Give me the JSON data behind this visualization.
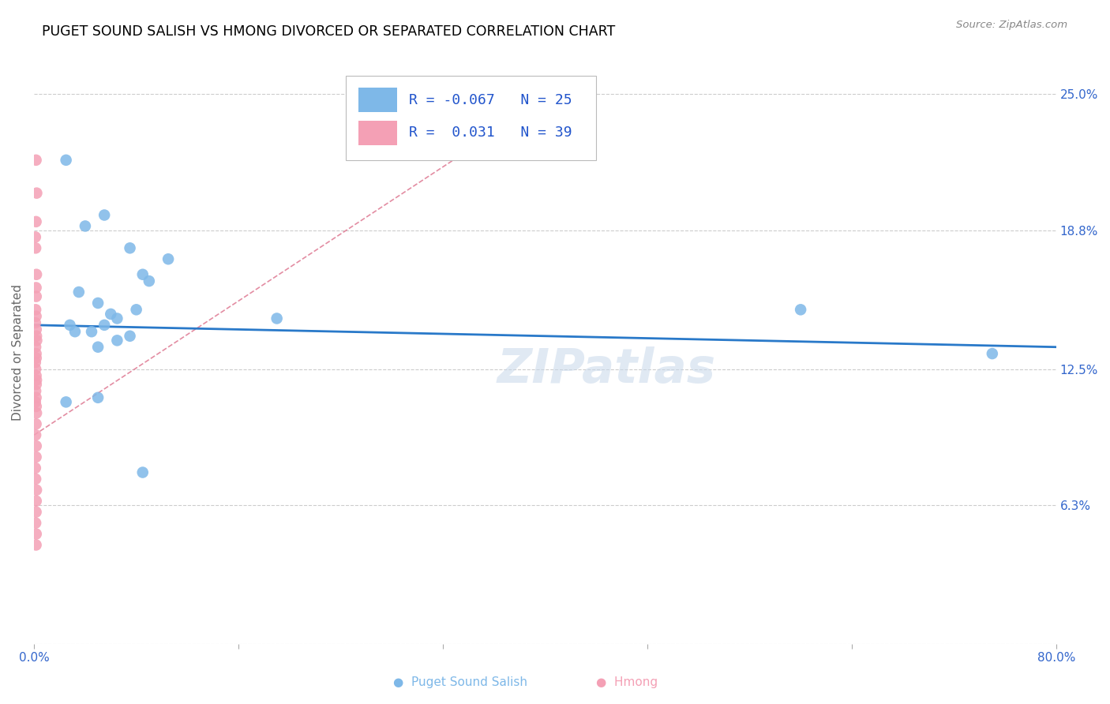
{
  "title": "PUGET SOUND SALISH VS HMONG DIVORCED OR SEPARATED CORRELATION CHART",
  "source": "Source: ZipAtlas.com",
  "ylabel": "Divorced or Separated",
  "xlim": [
    0.0,
    80.0
  ],
  "ylim": [
    0.0,
    26.5
  ],
  "yticks": [
    0.0,
    6.3,
    12.5,
    18.8,
    25.0
  ],
  "ytick_labels": [
    "",
    "6.3%",
    "12.5%",
    "18.8%",
    "25.0%"
  ],
  "xticks": [
    0.0,
    16.0,
    32.0,
    48.0,
    64.0,
    80.0
  ],
  "r_salish": -0.067,
  "n_salish": 25,
  "r_hmong": 0.031,
  "n_hmong": 39,
  "color_salish": "#7eb8e8",
  "color_hmong": "#f4a0b5",
  "color_salish_line": "#2979c9",
  "color_hmong_line": "#e08098",
  "watermark": "ZIPatlas",
  "salish_points_x": [
    2.5,
    5.5,
    4.0,
    7.5,
    10.5,
    9.0,
    3.5,
    5.0,
    6.0,
    2.8,
    4.5,
    6.5,
    8.0,
    8.5,
    5.5,
    3.2,
    5.0,
    6.5,
    7.5,
    19.0,
    60.0,
    75.0,
    2.5,
    5.0,
    8.5
  ],
  "salish_points_y": [
    22.0,
    19.5,
    19.0,
    18.0,
    17.5,
    16.5,
    16.0,
    15.5,
    15.0,
    14.5,
    14.2,
    14.8,
    15.2,
    16.8,
    14.5,
    14.2,
    13.5,
    13.8,
    14.0,
    14.8,
    15.2,
    13.2,
    11.0,
    11.2,
    7.8
  ],
  "hmong_points_x": [
    0.15,
    0.2,
    0.15,
    0.1,
    0.12,
    0.18,
    0.15,
    0.16,
    0.12,
    0.15,
    0.1,
    0.16,
    0.18,
    0.2,
    0.12,
    0.15,
    0.16,
    0.1,
    0.12,
    0.15,
    0.18,
    0.16,
    0.12,
    0.15,
    0.1,
    0.16,
    0.18,
    0.15,
    0.12,
    0.16,
    0.15,
    0.1,
    0.12,
    0.18,
    0.16,
    0.15,
    0.12,
    0.16,
    0.15
  ],
  "hmong_points_y": [
    22.0,
    20.5,
    19.2,
    18.5,
    18.0,
    16.8,
    16.2,
    15.8,
    15.2,
    14.9,
    14.6,
    14.3,
    14.0,
    13.8,
    13.5,
    13.2,
    13.0,
    12.8,
    12.5,
    12.2,
    12.0,
    11.8,
    11.5,
    11.2,
    11.0,
    10.8,
    10.5,
    10.0,
    9.5,
    9.0,
    8.5,
    8.0,
    7.5,
    7.0,
    6.5,
    6.0,
    5.5,
    5.0,
    4.5
  ],
  "salish_line_x": [
    0,
    80
  ],
  "salish_line_y": [
    14.5,
    13.5
  ],
  "hmong_line_x": [
    0,
    42
  ],
  "hmong_line_y": [
    9.5,
    25.5
  ],
  "legend_r_salish": "R = -0.067",
  "legend_n_salish": "N = 25",
  "legend_r_hmong": "R =  0.031",
  "legend_n_hmong": "N = 39"
}
